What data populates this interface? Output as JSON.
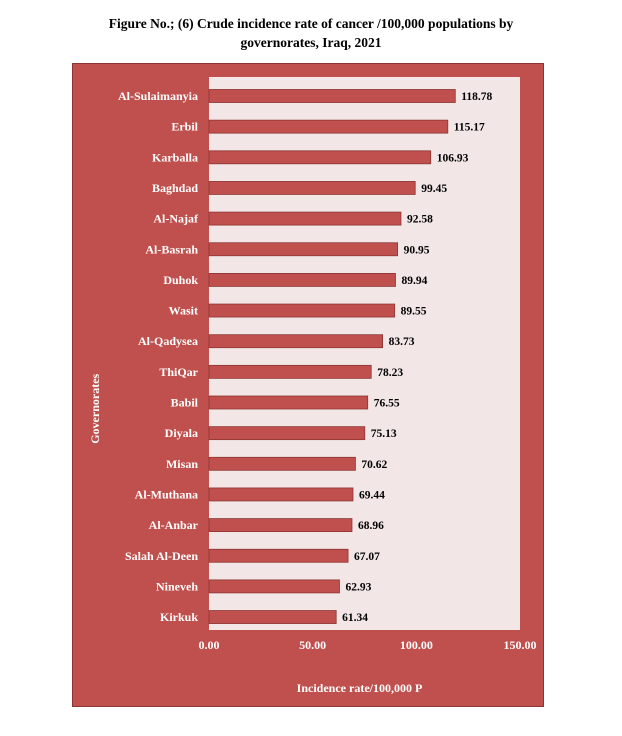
{
  "figure": {
    "title_line1": "Figure No.; (6) Crude incidence rate of cancer /100,000 populations by",
    "title_line2": "governorates, Iraq, 2021"
  },
  "colors": {
    "frame_background": "#c0504d",
    "plot_background": "#f2e6e6",
    "bar_fill": "#c0504d",
    "bar_stroke": "#8c3532"
  },
  "chart_data": {
    "type": "bar",
    "orientation": "horizontal",
    "title": "Figure No.; (6) Crude incidence rate of cancer /100,000 populations by governorates, Iraq, 2021",
    "xlabel": "Incidence rate/100,000 P",
    "ylabel": "Governorates",
    "xlim": [
      0,
      150
    ],
    "x_ticks": [
      "0.00",
      "50.00",
      "100.00",
      "150.00"
    ],
    "x_tick_values": [
      0,
      50,
      100,
      150
    ],
    "grid": false,
    "categories": [
      "Al-Sulaimanyia",
      "Erbil",
      "Karballa",
      "Baghdad",
      "Al-Najaf",
      "Al-Basrah",
      "Duhok",
      "Wasit",
      "Al-Qadysea",
      "ThiQar",
      "Babil",
      "Diyala",
      "Misan",
      "Al-Muthana",
      "Al-Anbar",
      "Salah Al-Deen",
      "Nineveh",
      "Kirkuk"
    ],
    "values": [
      118.78,
      115.17,
      106.93,
      99.45,
      92.58,
      90.95,
      89.94,
      89.55,
      83.73,
      78.23,
      76.55,
      75.13,
      70.62,
      69.44,
      68.96,
      67.07,
      62.93,
      61.34
    ],
    "value_labels": [
      "118.78",
      "115.17",
      "106.93",
      "99.45",
      "92.58",
      "90.95",
      "89.94",
      "89.55",
      "83.73",
      "78.23",
      "76.55",
      "75.13",
      "70.62",
      "69.44",
      "68.96",
      "67.07",
      "62.93",
      "61.34"
    ]
  }
}
